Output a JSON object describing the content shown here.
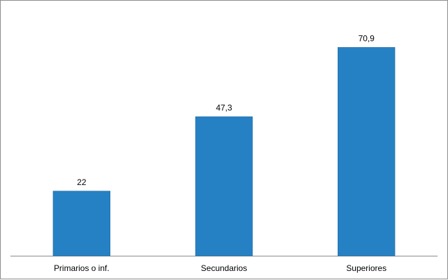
{
  "chart_data": {
    "type": "bar",
    "categories": [
      "Primarios o inf.",
      "Secundarios",
      "Superiores"
    ],
    "values": [
      22,
      47.3,
      70.9
    ],
    "data_labels": [
      "22",
      "47,3",
      "70,9"
    ],
    "title": "",
    "xlabel": "",
    "ylabel": "",
    "ylim": [
      0,
      80
    ],
    "grid": false,
    "legend": "none",
    "bar_color": "#2581c4",
    "bar_edge_color": "#1f6ea8",
    "axis_color": "#8c8c8c"
  }
}
